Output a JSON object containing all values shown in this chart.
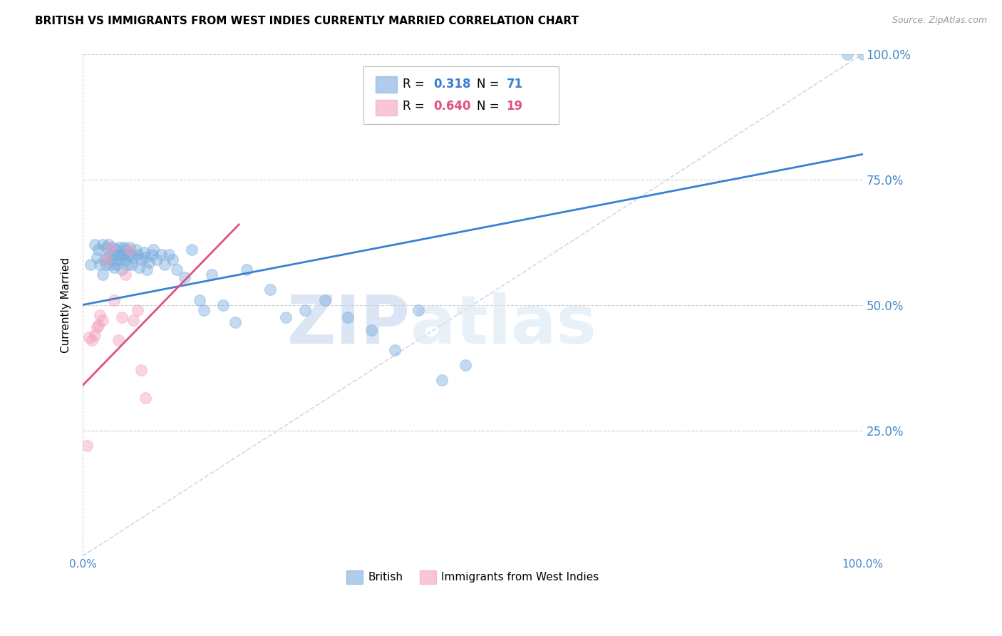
{
  "title": "BRITISH VS IMMIGRANTS FROM WEST INDIES CURRENTLY MARRIED CORRELATION CHART",
  "source": "Source: ZipAtlas.com",
  "ylabel": "Currently Married",
  "watermark_zip": "ZIP",
  "watermark_atlas": "atlas",
  "xlim": [
    0,
    1.0
  ],
  "ylim": [
    0,
    1.0
  ],
  "xtick_labels": [
    "0.0%",
    "100.0%"
  ],
  "ytick_labels": [
    "25.0%",
    "50.0%",
    "75.0%",
    "100.0%"
  ],
  "ytick_positions": [
    0.25,
    0.5,
    0.75,
    1.0
  ],
  "xtick_positions": [
    0.0,
    1.0
  ],
  "grid_color": "#cccccc",
  "british_color": "#7aadde",
  "westindies_color": "#f4a0bc",
  "trendline_british_color": "#3a7fd5",
  "trendline_westindies_color": "#e05080",
  "trendline_diagonal_color": "#d0d8e8",
  "label_color": "#4488cc",
  "r1_color": "#3a7fd5",
  "r2_color": "#e05080",
  "british_points_x": [
    0.01,
    0.015,
    0.018,
    0.02,
    0.022,
    0.025,
    0.025,
    0.028,
    0.03,
    0.03,
    0.032,
    0.033,
    0.035,
    0.035,
    0.038,
    0.04,
    0.04,
    0.042,
    0.043,
    0.044,
    0.045,
    0.047,
    0.048,
    0.05,
    0.05,
    0.052,
    0.053,
    0.055,
    0.055,
    0.057,
    0.058,
    0.06,
    0.062,
    0.063,
    0.065,
    0.068,
    0.07,
    0.072,
    0.075,
    0.078,
    0.08,
    0.082,
    0.085,
    0.088,
    0.09,
    0.095,
    0.1,
    0.105,
    0.11,
    0.115,
    0.12,
    0.13,
    0.14,
    0.15,
    0.155,
    0.165,
    0.18,
    0.195,
    0.21,
    0.24,
    0.26,
    0.285,
    0.31,
    0.34,
    0.37,
    0.4,
    0.43,
    0.46,
    0.49,
    0.98,
    1.0
  ],
  "british_points_y": [
    0.58,
    0.62,
    0.595,
    0.61,
    0.58,
    0.62,
    0.56,
    0.59,
    0.615,
    0.58,
    0.595,
    0.62,
    0.58,
    0.6,
    0.615,
    0.6,
    0.575,
    0.59,
    0.61,
    0.58,
    0.6,
    0.615,
    0.59,
    0.6,
    0.57,
    0.6,
    0.615,
    0.59,
    0.61,
    0.58,
    0.6,
    0.615,
    0.6,
    0.58,
    0.595,
    0.61,
    0.6,
    0.575,
    0.59,
    0.605,
    0.595,
    0.57,
    0.585,
    0.6,
    0.61,
    0.59,
    0.6,
    0.58,
    0.6,
    0.59,
    0.57,
    0.555,
    0.61,
    0.51,
    0.49,
    0.56,
    0.5,
    0.465,
    0.57,
    0.53,
    0.475,
    0.49,
    0.51,
    0.475,
    0.45,
    0.41,
    0.49,
    0.35,
    0.38,
    1.0,
    1.0
  ],
  "westindies_points_x": [
    0.005,
    0.008,
    0.012,
    0.015,
    0.018,
    0.02,
    0.022,
    0.025,
    0.03,
    0.035,
    0.04,
    0.045,
    0.05,
    0.055,
    0.06,
    0.065,
    0.07,
    0.075,
    0.08
  ],
  "westindies_points_y": [
    0.22,
    0.435,
    0.43,
    0.44,
    0.455,
    0.46,
    0.48,
    0.47,
    0.59,
    0.615,
    0.51,
    0.43,
    0.475,
    0.56,
    0.61,
    0.47,
    0.49,
    0.37,
    0.315
  ],
  "british_line_x": [
    0.0,
    1.0
  ],
  "british_line_y": [
    0.5,
    0.8
  ],
  "westindies_line_x": [
    0.0,
    0.2
  ],
  "westindies_line_y": [
    0.34,
    0.66
  ],
  "diagonal_line_x": [
    0.0,
    1.0
  ],
  "diagonal_line_y": [
    0.0,
    1.0
  ],
  "marker_size": 130,
  "marker_alpha": 0.45,
  "marker_edge_width": 0.8
}
